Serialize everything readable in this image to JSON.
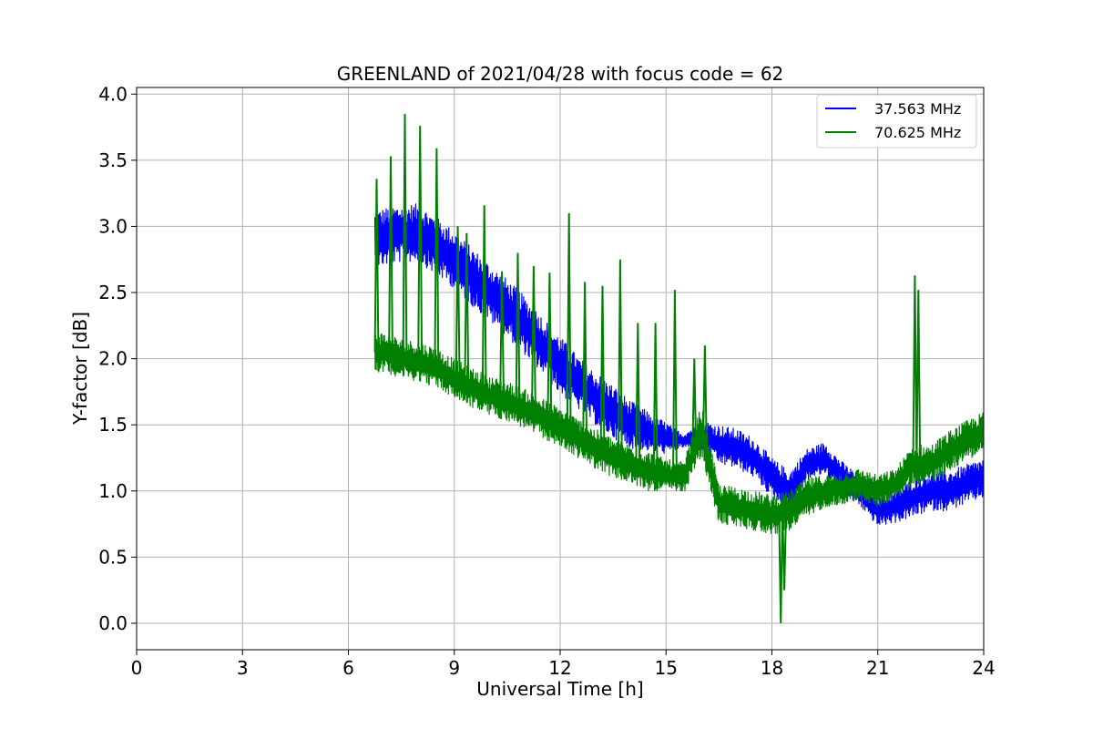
{
  "chart_data": {
    "type": "line",
    "title": "GREENLAND of 2021/04/28 with focus code = 62",
    "xlabel": "Universal Time [h]",
    "ylabel": "Y-factor [dB]",
    "xlim": [
      0,
      24
    ],
    "ylim": [
      -0.2,
      4.05
    ],
    "xticks": [
      0,
      3,
      6,
      9,
      12,
      15,
      18,
      21,
      24
    ],
    "xtick_labels": [
      "0",
      "3",
      "6",
      "9",
      "12",
      "15",
      "18",
      "21",
      "24"
    ],
    "yticks": [
      0.0,
      0.5,
      1.0,
      1.5,
      2.0,
      2.5,
      3.0,
      3.5,
      4.0
    ],
    "ytick_labels": [
      "0.0",
      "0.5",
      "1.0",
      "1.5",
      "2.0",
      "2.5",
      "3.0",
      "3.5",
      "4.0"
    ],
    "grid": true,
    "legend_position": "top-right",
    "series": [
      {
        "name": "37.563 MHz",
        "color": "#0000ff",
        "x": [
          6.75,
          7.0,
          7.5,
          8.0,
          8.5,
          9.0,
          9.5,
          10.0,
          10.5,
          11.0,
          11.5,
          12.0,
          12.5,
          13.0,
          13.5,
          14.0,
          14.5,
          15.0,
          15.5,
          16.0,
          16.5,
          17.0,
          17.5,
          18.0,
          18.5,
          19.0,
          19.5,
          20.0,
          20.5,
          21.0,
          21.5,
          22.0,
          22.5,
          23.0,
          23.5,
          24.0
        ],
        "y": [
          2.9,
          2.92,
          2.95,
          2.95,
          2.85,
          2.75,
          2.62,
          2.5,
          2.38,
          2.25,
          2.1,
          1.95,
          1.82,
          1.7,
          1.6,
          1.5,
          1.45,
          1.4,
          1.38,
          1.42,
          1.35,
          1.32,
          1.25,
          1.1,
          1.0,
          1.2,
          1.25,
          1.1,
          1.0,
          0.85,
          0.88,
          0.95,
          1.0,
          1.0,
          1.05,
          1.1
        ],
        "band": [
          0.22,
          0.22,
          0.22,
          0.22,
          0.22,
          0.22,
          0.22,
          0.22,
          0.22,
          0.22,
          0.22,
          0.22,
          0.2,
          0.2,
          0.2,
          0.18,
          0.15,
          0.12,
          0.05,
          0.12,
          0.15,
          0.15,
          0.15,
          0.15,
          0.15,
          0.12,
          0.12,
          0.12,
          0.12,
          0.12,
          0.12,
          0.15,
          0.15,
          0.15,
          0.15,
          0.15
        ]
      },
      {
        "name": "70.625 MHz",
        "color": "#008000",
        "x": [
          6.75,
          7.0,
          7.5,
          8.0,
          8.5,
          9.0,
          9.5,
          10.0,
          10.5,
          11.0,
          11.5,
          12.0,
          12.5,
          13.0,
          13.5,
          14.0,
          14.5,
          15.0,
          15.5,
          16.0,
          16.5,
          17.0,
          17.5,
          18.0,
          18.5,
          19.0,
          19.5,
          20.0,
          20.5,
          21.0,
          21.5,
          22.0,
          22.5,
          23.0,
          23.5,
          24.0
        ],
        "y": [
          2.05,
          2.05,
          2.0,
          1.98,
          1.93,
          1.85,
          1.78,
          1.72,
          1.68,
          1.62,
          1.55,
          1.48,
          1.4,
          1.32,
          1.25,
          1.2,
          1.15,
          1.12,
          1.1,
          1.45,
          0.9,
          0.88,
          0.85,
          0.82,
          0.85,
          0.95,
          1.0,
          1.02,
          1.05,
          1.0,
          1.05,
          1.2,
          1.2,
          1.3,
          1.38,
          1.45
        ],
        "band": [
          0.15,
          0.15,
          0.15,
          0.15,
          0.15,
          0.15,
          0.15,
          0.15,
          0.15,
          0.15,
          0.15,
          0.15,
          0.15,
          0.15,
          0.15,
          0.15,
          0.15,
          0.12,
          0.12,
          0.2,
          0.15,
          0.15,
          0.15,
          0.15,
          0.15,
          0.15,
          0.12,
          0.12,
          0.12,
          0.12,
          0.12,
          0.15,
          0.15,
          0.15,
          0.15,
          0.15
        ],
        "spikes": [
          {
            "x": 6.8,
            "y": 3.36
          },
          {
            "x": 7.2,
            "y": 3.53
          },
          {
            "x": 7.6,
            "y": 3.85
          },
          {
            "x": 8.03,
            "y": 3.76
          },
          {
            "x": 8.5,
            "y": 3.59
          },
          {
            "x": 9.1,
            "y": 3.0
          },
          {
            "x": 9.35,
            "y": 2.95
          },
          {
            "x": 9.85,
            "y": 3.16
          },
          {
            "x": 10.35,
            "y": 2.66
          },
          {
            "x": 10.8,
            "y": 2.8
          },
          {
            "x": 11.25,
            "y": 2.7
          },
          {
            "x": 11.7,
            "y": 2.65
          },
          {
            "x": 12.25,
            "y": 3.1
          },
          {
            "x": 12.7,
            "y": 2.58
          },
          {
            "x": 13.2,
            "y": 2.55
          },
          {
            "x": 13.7,
            "y": 2.75
          },
          {
            "x": 14.2,
            "y": 2.27
          },
          {
            "x": 14.7,
            "y": 2.27
          },
          {
            "x": 15.25,
            "y": 2.52
          },
          {
            "x": 15.8,
            "y": 2.0
          },
          {
            "x": 16.1,
            "y": 2.1
          },
          {
            "x": 18.25,
            "y": 0.0
          },
          {
            "x": 18.35,
            "y": 0.25
          },
          {
            "x": 22.05,
            "y": 2.63
          },
          {
            "x": 22.15,
            "y": 2.52
          }
        ]
      }
    ]
  }
}
